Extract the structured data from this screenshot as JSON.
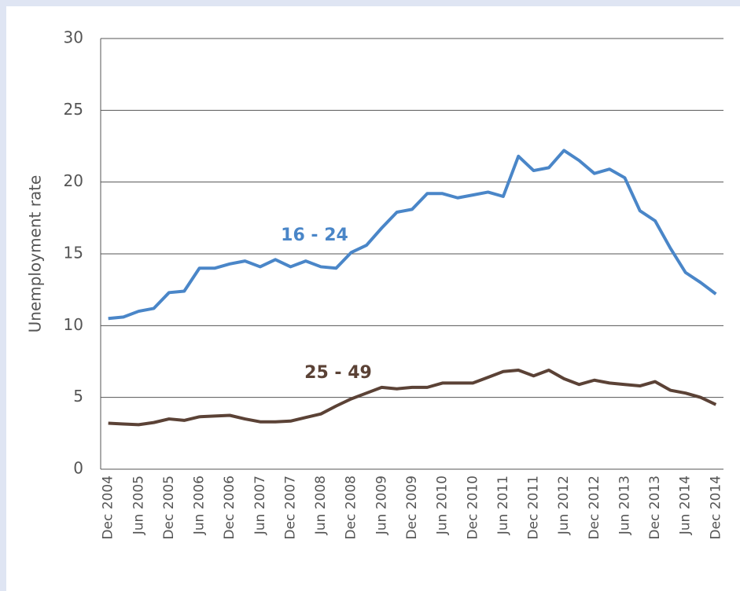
{
  "chart_data": {
    "type": "line",
    "y_label": "Unemployment rate",
    "categories": [
      "Dec 2004",
      null,
      "Jun 2005",
      null,
      "Dec 2005",
      null,
      "Jun 2006",
      null,
      "Dec 2006",
      null,
      "Jun 2007",
      null,
      "Dec 2007",
      null,
      "Jun 2008",
      null,
      "Dec 2008",
      null,
      "Jun 2009",
      null,
      "Dec 2009",
      null,
      "Jun 2010",
      null,
      "Dec 2010",
      null,
      "Jun 2011",
      null,
      "Dec 2011",
      null,
      "Jun 2012",
      null,
      "Dec 2012",
      null,
      "Jun 2013",
      null,
      "Dec 2013",
      null,
      "Jun 2014",
      null,
      "Dec 2014"
    ],
    "series": [
      {
        "name": "16 - 24",
        "color": "#4a86c8",
        "values": [
          10.5,
          10.6,
          11.0,
          11.2,
          12.3,
          12.4,
          14.0,
          14.0,
          14.3,
          14.5,
          14.1,
          14.6,
          14.1,
          14.5,
          14.1,
          14.0,
          15.1,
          15.6,
          16.8,
          17.9,
          18.1,
          19.2,
          19.2,
          18.9,
          19.1,
          19.3,
          19.0,
          21.8,
          20.8,
          21.0,
          22.2,
          21.5,
          20.6,
          20.9,
          20.3,
          18.0,
          17.3,
          15.4,
          13.7,
          13.0,
          12.2
        ]
      },
      {
        "name": "25 - 49",
        "color": "#5b4236",
        "values": [
          3.2,
          3.15,
          3.1,
          3.25,
          3.5,
          3.4,
          3.65,
          3.7,
          3.75,
          3.5,
          3.3,
          3.3,
          3.35,
          3.6,
          3.85,
          4.4,
          4.9,
          5.3,
          5.7,
          5.6,
          5.7,
          5.7,
          6.0,
          6.0,
          6.0,
          6.4,
          6.8,
          6.9,
          6.5,
          6.9,
          6.3,
          5.9,
          6.2,
          6.0,
          5.9,
          5.8,
          6.1,
          5.5,
          5.3,
          5.0,
          4.5
        ]
      }
    ],
    "ylim": [
      0,
      30
    ],
    "yticks": [
      0,
      5,
      10,
      15,
      20,
      25,
      30
    ],
    "grid": true
  }
}
